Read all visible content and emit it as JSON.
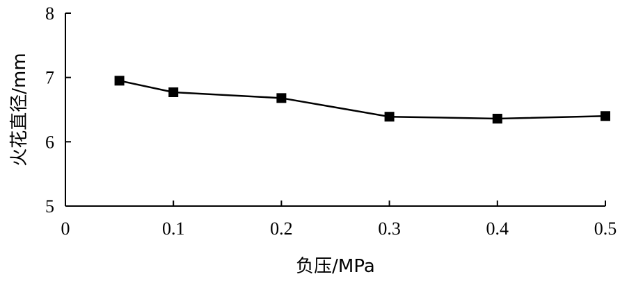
{
  "chart_data": {
    "type": "line",
    "title": "",
    "xlabel": "负压/MPa",
    "ylabel": "火花直径/mm",
    "xlim": [
      0,
      0.5
    ],
    "ylim": [
      5,
      8
    ],
    "x_ticks": [
      0,
      0.1,
      0.2,
      0.3,
      0.4,
      0.5
    ],
    "x_tick_labels": [
      "0",
      "0.1",
      "0.2",
      "0.3",
      "0.4",
      "0.5"
    ],
    "y_ticks": [
      5,
      6,
      7,
      8
    ],
    "y_tick_labels": [
      "5",
      "6",
      "7",
      "8"
    ],
    "grid": false,
    "legend": "none",
    "series": [
      {
        "marker": "square",
        "color": "#000000",
        "x": [
          0.05,
          0.1,
          0.2,
          0.3,
          0.4,
          0.5
        ],
        "y": [
          6.95,
          6.77,
          6.68,
          6.39,
          6.36,
          6.4
        ]
      }
    ]
  }
}
